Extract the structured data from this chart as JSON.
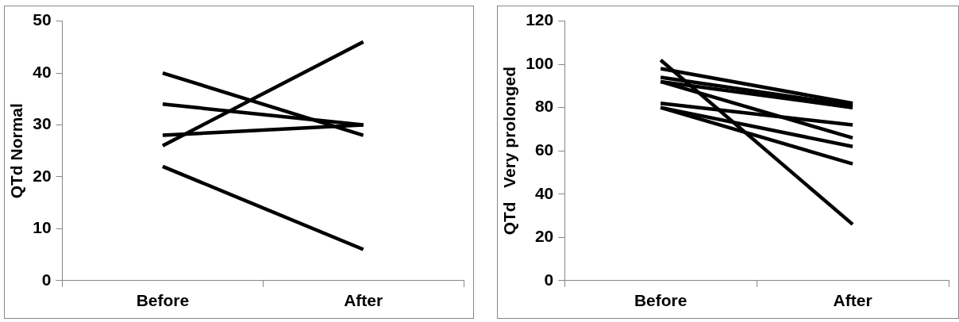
{
  "chart_data": [
    {
      "type": "line",
      "ylabel": "QTd Normal",
      "categories": [
        "Before",
        "After"
      ],
      "ylim": [
        0,
        50
      ],
      "yticks": [
        0,
        10,
        20,
        30,
        40,
        50
      ],
      "marker": "none",
      "line_style": "solid",
      "series": [
        {
          "color": "#000000",
          "values": [
            40,
            28
          ]
        },
        {
          "color": "#000000",
          "values": [
            34,
            30
          ]
        },
        {
          "color": "#000000",
          "values": [
            28,
            30
          ]
        },
        {
          "color": "#000000",
          "values": [
            26,
            46
          ]
        },
        {
          "color": "#000000",
          "values": [
            22,
            6
          ]
        }
      ]
    },
    {
      "type": "line",
      "ylabel": "QTd   Very prolonged",
      "categories": [
        "Before",
        "After"
      ],
      "ylim": [
        0,
        120
      ],
      "yticks": [
        0,
        20,
        40,
        60,
        80,
        100,
        120
      ],
      "marker": "none",
      "line_style": "solid",
      "series": [
        {
          "color": "#000000",
          "values": [
            102,
            26
          ]
        },
        {
          "color": "#000000",
          "values": [
            98,
            82
          ]
        },
        {
          "color": "#000000",
          "values": [
            94,
            81
          ]
        },
        {
          "color": "#000000",
          "values": [
            92,
            80
          ]
        },
        {
          "color": "#000000",
          "values": [
            92,
            66
          ]
        },
        {
          "color": "#000000",
          "values": [
            82,
            72
          ]
        },
        {
          "color": "#000000",
          "values": [
            80,
            62
          ]
        },
        {
          "color": "#000000",
          "values": [
            80,
            54
          ]
        }
      ]
    }
  ]
}
